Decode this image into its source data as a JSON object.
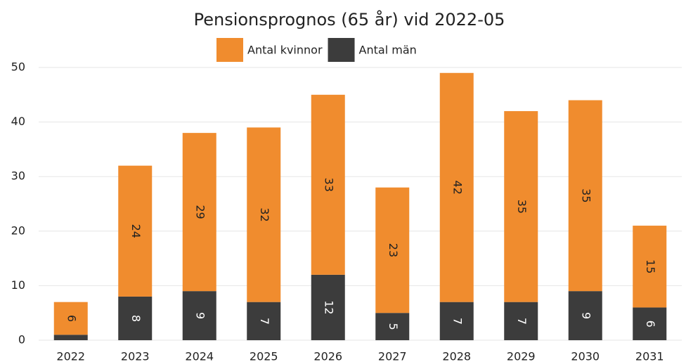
{
  "chart_data": {
    "type": "stacked_bar",
    "title": "Pensionsprognos (65 år) vid 2022-05",
    "categories": [
      "2022",
      "2023",
      "2024",
      "2025",
      "2026",
      "2027",
      "2028",
      "2029",
      "2030",
      "2031"
    ],
    "series": [
      {
        "name": "Antal kvinnor",
        "color": "#f08c2e",
        "values": [
          6,
          24,
          29,
          32,
          33,
          23,
          42,
          35,
          35,
          15
        ]
      },
      {
        "name": "Antal män",
        "color": "#3c3c3c",
        "values": [
          1,
          8,
          9,
          7,
          12,
          5,
          7,
          7,
          9,
          6
        ]
      }
    ],
    "ylim": [
      0,
      50
    ],
    "yticks": [
      0,
      10,
      20,
      30,
      40,
      50
    ],
    "grid": true,
    "legend": "top"
  }
}
